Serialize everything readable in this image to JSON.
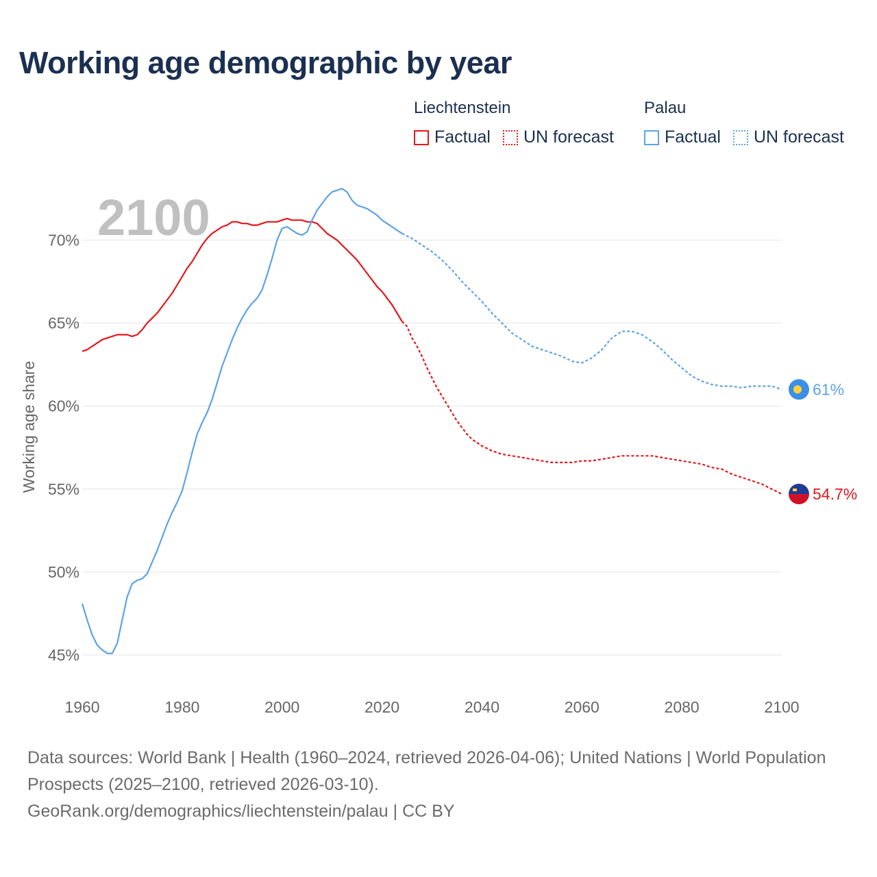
{
  "chart_data": {
    "type": "line",
    "title": "Working age demographic by year",
    "year_label": "2100",
    "ylabel": "Working age share",
    "xlabel": "",
    "x_ticks": [
      "1960",
      "1980",
      "2000",
      "2020",
      "2040",
      "2060",
      "2080",
      "2100"
    ],
    "y_ticks": [
      "45%",
      "50%",
      "55%",
      "60%",
      "65%",
      "70%"
    ],
    "xlim": [
      1960,
      2100
    ],
    "ylim": [
      45,
      72.7
    ],
    "grid": true,
    "legend": {
      "groups": [
        {
          "name": "Liechtenstein",
          "color": "#e3171b",
          "items": [
            "Factual",
            "UN forecast"
          ]
        },
        {
          "name": "Palau",
          "color": "#5ba3e6",
          "items": [
            "Factual",
            "UN forecast"
          ]
        }
      ]
    },
    "factual_range": [
      1960,
      2024
    ],
    "forecast_range": [
      2024,
      2100
    ],
    "series": [
      {
        "name": "Liechtenstein",
        "color": "#e3171b",
        "end_label": "54.7%",
        "points": [
          [
            1960,
            63.3
          ],
          [
            1961,
            63.4
          ],
          [
            1962,
            63.6
          ],
          [
            1963,
            63.8
          ],
          [
            1964,
            64.0
          ],
          [
            1965,
            64.1
          ],
          [
            1966,
            64.2
          ],
          [
            1967,
            64.3
          ],
          [
            1968,
            64.3
          ],
          [
            1969,
            64.3
          ],
          [
            1970,
            64.2
          ],
          [
            1971,
            64.3
          ],
          [
            1972,
            64.6
          ],
          [
            1973,
            65.0
          ],
          [
            1974,
            65.3
          ],
          [
            1975,
            65.6
          ],
          [
            1976,
            66.0
          ],
          [
            1977,
            66.4
          ],
          [
            1978,
            66.8
          ],
          [
            1979,
            67.3
          ],
          [
            1980,
            67.8
          ],
          [
            1981,
            68.3
          ],
          [
            1982,
            68.7
          ],
          [
            1983,
            69.2
          ],
          [
            1984,
            69.7
          ],
          [
            1985,
            70.1
          ],
          [
            1986,
            70.4
          ],
          [
            1987,
            70.6
          ],
          [
            1988,
            70.8
          ],
          [
            1989,
            70.9
          ],
          [
            1990,
            71.1
          ],
          [
            1991,
            71.1
          ],
          [
            1992,
            71.0
          ],
          [
            1993,
            71.0
          ],
          [
            1994,
            70.9
          ],
          [
            1995,
            70.9
          ],
          [
            1996,
            71.0
          ],
          [
            1997,
            71.1
          ],
          [
            1998,
            71.1
          ],
          [
            1999,
            71.1
          ],
          [
            2000,
            71.2
          ],
          [
            2001,
            71.3
          ],
          [
            2002,
            71.2
          ],
          [
            2003,
            71.2
          ],
          [
            2004,
            71.2
          ],
          [
            2005,
            71.1
          ],
          [
            2006,
            71.1
          ],
          [
            2007,
            71.0
          ],
          [
            2008,
            70.7
          ],
          [
            2009,
            70.4
          ],
          [
            2010,
            70.2
          ],
          [
            2011,
            70.0
          ],
          [
            2012,
            69.7
          ],
          [
            2013,
            69.4
          ],
          [
            2014,
            69.1
          ],
          [
            2015,
            68.8
          ],
          [
            2016,
            68.4
          ],
          [
            2017,
            68.0
          ],
          [
            2018,
            67.6
          ],
          [
            2019,
            67.2
          ],
          [
            2020,
            66.9
          ],
          [
            2021,
            66.5
          ],
          [
            2022,
            66.1
          ],
          [
            2023,
            65.6
          ],
          [
            2024,
            65.1
          ],
          [
            2025,
            64.8
          ],
          [
            2026,
            64.1
          ],
          [
            2027,
            63.6
          ],
          [
            2028,
            63.0
          ],
          [
            2029,
            62.3
          ],
          [
            2030,
            61.7
          ],
          [
            2031,
            61.1
          ],
          [
            2032,
            60.6
          ],
          [
            2033,
            60.1
          ],
          [
            2034,
            59.6
          ],
          [
            2035,
            59.1
          ],
          [
            2036,
            58.7
          ],
          [
            2037,
            58.3
          ],
          [
            2038,
            58.0
          ],
          [
            2039,
            57.8
          ],
          [
            2040,
            57.6
          ],
          [
            2042,
            57.3
          ],
          [
            2044,
            57.1
          ],
          [
            2046,
            57.0
          ],
          [
            2048,
            56.9
          ],
          [
            2050,
            56.8
          ],
          [
            2052,
            56.7
          ],
          [
            2054,
            56.6
          ],
          [
            2056,
            56.6
          ],
          [
            2058,
            56.6
          ],
          [
            2060,
            56.7
          ],
          [
            2062,
            56.7
          ],
          [
            2064,
            56.8
          ],
          [
            2066,
            56.9
          ],
          [
            2068,
            57.0
          ],
          [
            2070,
            57.0
          ],
          [
            2072,
            57.0
          ],
          [
            2074,
            57.0
          ],
          [
            2076,
            56.9
          ],
          [
            2078,
            56.8
          ],
          [
            2080,
            56.7
          ],
          [
            2082,
            56.6
          ],
          [
            2084,
            56.5
          ],
          [
            2086,
            56.3
          ],
          [
            2088,
            56.2
          ],
          [
            2090,
            55.9
          ],
          [
            2092,
            55.7
          ],
          [
            2094,
            55.5
          ],
          [
            2096,
            55.3
          ],
          [
            2098,
            55.0
          ],
          [
            2100,
            54.7
          ]
        ]
      },
      {
        "name": "Palau",
        "color": "#5ba3e6",
        "end_label": "61%",
        "points": [
          [
            1960,
            48.1
          ],
          [
            1961,
            47.1
          ],
          [
            1962,
            46.2
          ],
          [
            1963,
            45.6
          ],
          [
            1964,
            45.3
          ],
          [
            1965,
            45.1
          ],
          [
            1966,
            45.1
          ],
          [
            1967,
            45.7
          ],
          [
            1968,
            47.1
          ],
          [
            1969,
            48.5
          ],
          [
            1970,
            49.3
          ],
          [
            1971,
            49.5
          ],
          [
            1972,
            49.6
          ],
          [
            1973,
            49.9
          ],
          [
            1974,
            50.6
          ],
          [
            1975,
            51.3
          ],
          [
            1976,
            52.1
          ],
          [
            1977,
            52.9
          ],
          [
            1978,
            53.6
          ],
          [
            1979,
            54.2
          ],
          [
            1980,
            54.9
          ],
          [
            1981,
            56.0
          ],
          [
            1982,
            57.2
          ],
          [
            1983,
            58.3
          ],
          [
            1984,
            59.0
          ],
          [
            1985,
            59.6
          ],
          [
            1986,
            60.4
          ],
          [
            1987,
            61.4
          ],
          [
            1988,
            62.4
          ],
          [
            1989,
            63.2
          ],
          [
            1990,
            64.0
          ],
          [
            1991,
            64.7
          ],
          [
            1992,
            65.3
          ],
          [
            1993,
            65.8
          ],
          [
            1994,
            66.2
          ],
          [
            1995,
            66.5
          ],
          [
            1996,
            67.0
          ],
          [
            1997,
            67.9
          ],
          [
            1998,
            68.9
          ],
          [
            1999,
            70.0
          ],
          [
            2000,
            70.7
          ],
          [
            2001,
            70.8
          ],
          [
            2002,
            70.6
          ],
          [
            2003,
            70.4
          ],
          [
            2004,
            70.3
          ],
          [
            2005,
            70.5
          ],
          [
            2006,
            71.2
          ],
          [
            2007,
            71.8
          ],
          [
            2008,
            72.2
          ],
          [
            2009,
            72.6
          ],
          [
            2010,
            72.9
          ],
          [
            2011,
            73.0
          ],
          [
            2012,
            73.1
          ],
          [
            2013,
            72.9
          ],
          [
            2014,
            72.4
          ],
          [
            2015,
            72.1
          ],
          [
            2016,
            72.0
          ],
          [
            2017,
            71.9
          ],
          [
            2018,
            71.7
          ],
          [
            2019,
            71.5
          ],
          [
            2020,
            71.2
          ],
          [
            2021,
            71.0
          ],
          [
            2022,
            70.8
          ],
          [
            2023,
            70.6
          ],
          [
            2024,
            70.4
          ],
          [
            2026,
            70.1
          ],
          [
            2028,
            69.7
          ],
          [
            2030,
            69.3
          ],
          [
            2032,
            68.8
          ],
          [
            2034,
            68.2
          ],
          [
            2036,
            67.5
          ],
          [
            2038,
            66.9
          ],
          [
            2040,
            66.3
          ],
          [
            2042,
            65.6
          ],
          [
            2044,
            65.0
          ],
          [
            2046,
            64.4
          ],
          [
            2048,
            64.0
          ],
          [
            2050,
            63.6
          ],
          [
            2052,
            63.4
          ],
          [
            2054,
            63.2
          ],
          [
            2056,
            63.0
          ],
          [
            2058,
            62.7
          ],
          [
            2060,
            62.6
          ],
          [
            2062,
            62.9
          ],
          [
            2064,
            63.4
          ],
          [
            2066,
            64.1
          ],
          [
            2068,
            64.5
          ],
          [
            2070,
            64.5
          ],
          [
            2072,
            64.3
          ],
          [
            2074,
            63.9
          ],
          [
            2076,
            63.4
          ],
          [
            2078,
            62.8
          ],
          [
            2080,
            62.3
          ],
          [
            2082,
            61.8
          ],
          [
            2084,
            61.5
          ],
          [
            2086,
            61.3
          ],
          [
            2088,
            61.2
          ],
          [
            2090,
            61.2
          ],
          [
            2092,
            61.1
          ],
          [
            2094,
            61.2
          ],
          [
            2096,
            61.2
          ],
          [
            2098,
            61.2
          ],
          [
            2100,
            61.0
          ]
        ]
      }
    ]
  },
  "footer": {
    "sources": "Data sources: World Bank | Health (1960–2024, retrieved 2026-04-06); United Nations | World Population Prospects (2025–2100, retrieved 2026-03-10).",
    "attribution": "GeoRank.org/demographics/liechtenstein/palau | CC BY"
  }
}
